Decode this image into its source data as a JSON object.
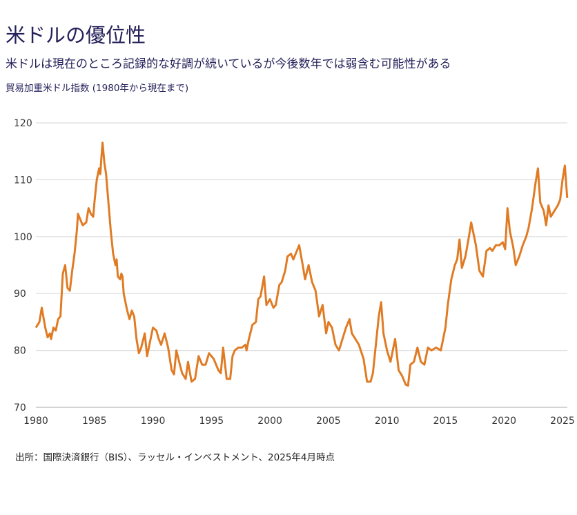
{
  "title": "米ドルの優位性",
  "subtitle": "米ドルは現在のところ記録的な好調が続いているが今後数年では弱含む可能性がある",
  "source": "出所：国際決済銀行（BIS）、ラッセル・インベストメント、2025年4月時点",
  "chart_data": {
    "type": "line",
    "title": "貿易加重米ドル指数 (1980年から現在まで)",
    "xlabel": "",
    "ylabel": "",
    "xlim": [
      1980,
      2025.4
    ],
    "ylim": [
      70,
      120
    ],
    "xticks": [
      1980,
      1985,
      1990,
      1995,
      2000,
      2005,
      2010,
      2015,
      2020,
      2025
    ],
    "yticks": [
      70,
      80,
      90,
      100,
      110,
      120
    ],
    "grid": "horizontal",
    "line_color": "#e07b24",
    "x": [
      1980.0,
      1980.3,
      1980.5,
      1980.8,
      1981.0,
      1981.2,
      1981.3,
      1981.5,
      1981.7,
      1981.9,
      1982.1,
      1982.3,
      1982.5,
      1982.7,
      1982.9,
      1983.1,
      1983.3,
      1983.5,
      1983.6,
      1983.8,
      1984.0,
      1984.3,
      1984.5,
      1984.7,
      1984.9,
      1985.0,
      1985.2,
      1985.4,
      1985.5,
      1985.6,
      1985.7,
      1985.85,
      1986.0,
      1986.2,
      1986.4,
      1986.6,
      1986.8,
      1986.9,
      1987.0,
      1987.2,
      1987.3,
      1987.4,
      1987.5,
      1987.8,
      1988.0,
      1988.2,
      1988.4,
      1988.6,
      1988.8,
      1989.0,
      1989.3,
      1989.5,
      1989.8,
      1990.0,
      1990.3,
      1990.5,
      1990.7,
      1991.0,
      1991.3,
      1991.6,
      1991.8,
      1992.0,
      1992.3,
      1992.5,
      1992.8,
      1993.0,
      1993.3,
      1993.6,
      1993.9,
      1994.2,
      1994.5,
      1994.8,
      1995.2,
      1995.6,
      1995.8,
      1996.0,
      1996.3,
      1996.6,
      1996.8,
      1997.0,
      1997.3,
      1997.6,
      1997.9,
      1998.0,
      1998.2,
      1998.5,
      1998.8,
      1999.0,
      1999.2,
      1999.5,
      1999.7,
      2000.0,
      2000.3,
      2000.5,
      2000.8,
      2001.0,
      2001.3,
      2001.5,
      2001.8,
      2002.0,
      2002.3,
      2002.5,
      2002.8,
      2003.0,
      2003.3,
      2003.6,
      2003.9,
      2004.2,
      2004.5,
      2004.8,
      2005.0,
      2005.3,
      2005.6,
      2005.9,
      2006.2,
      2006.5,
      2006.8,
      2007.0,
      2007.3,
      2007.6,
      2008.0,
      2008.3,
      2008.6,
      2008.8,
      2009.0,
      2009.3,
      2009.5,
      2009.7,
      2010.0,
      2010.3,
      2010.5,
      2010.7,
      2011.0,
      2011.3,
      2011.6,
      2011.8,
      2012.0,
      2012.3,
      2012.6,
      2012.9,
      2013.2,
      2013.5,
      2013.8,
      2014.2,
      2014.6,
      2015.0,
      2015.2,
      2015.5,
      2015.8,
      2016.0,
      2016.2,
      2016.4,
      2016.7,
      2017.0,
      2017.2,
      2017.6,
      2017.9,
      2018.2,
      2018.5,
      2018.8,
      2019.0,
      2019.3,
      2019.6,
      2019.9,
      2020.1,
      2020.3,
      2020.5,
      2020.8,
      2021.0,
      2021.3,
      2021.6,
      2021.9,
      2022.1,
      2022.4,
      2022.7,
      2022.9,
      2023.1,
      2023.4,
      2023.6,
      2023.8,
      2024.0,
      2024.3,
      2024.6,
      2024.8,
      2025.0,
      2025.2,
      2025.4
    ],
    "y": [
      84,
      85,
      87.5,
      84,
      82.3,
      83,
      82,
      84,
      83.5,
      85.5,
      86,
      93.5,
      95,
      91,
      90.5,
      94,
      97,
      101,
      104,
      103,
      102,
      102.5,
      105,
      104,
      103.5,
      106,
      110,
      112,
      111,
      114,
      116.5,
      113,
      111,
      106,
      101,
      97,
      95,
      96,
      93,
      92.5,
      93.5,
      93,
      90,
      87,
      85.5,
      87,
      86,
      82,
      79.5,
      80.5,
      83,
      79,
      82,
      84,
      83.5,
      82,
      81,
      83,
      80.5,
      76.5,
      75.8,
      80,
      77.5,
      76,
      75,
      78,
      74.5,
      75,
      79,
      77.5,
      77.5,
      79.5,
      78.5,
      76.5,
      76,
      80.5,
      75,
      75,
      79,
      80,
      80.5,
      80.5,
      81,
      80,
      82,
      84.5,
      85,
      89,
      89.5,
      93,
      88,
      89,
      87.5,
      88,
      91.5,
      92,
      94,
      96.5,
      97,
      96,
      97.5,
      98.5,
      95,
      92.5,
      95,
      92,
      90.5,
      86,
      88,
      83,
      85,
      84,
      81,
      80,
      82,
      84,
      85.5,
      83,
      82,
      81,
      78.5,
      74.5,
      74.5,
      76,
      80,
      86,
      88.5,
      83,
      80,
      78,
      80,
      82,
      76.5,
      75.5,
      74,
      73.8,
      77.5,
      78,
      80.5,
      78,
      77.5,
      80.5,
      80,
      80.5,
      80,
      84,
      88,
      92.5,
      95,
      96,
      99.5,
      94.5,
      96.5,
      100,
      102.5,
      98.5,
      94,
      93,
      97.5,
      98,
      97.5,
      98.5,
      98.5,
      99,
      97.8,
      105,
      101,
      98,
      95,
      96.5,
      98.5,
      100,
      101.5,
      105,
      109.5,
      112,
      106,
      104.5,
      102,
      105.5,
      103.5,
      104.5,
      105.5,
      106.5,
      110,
      112.5,
      106.8
    ]
  }
}
